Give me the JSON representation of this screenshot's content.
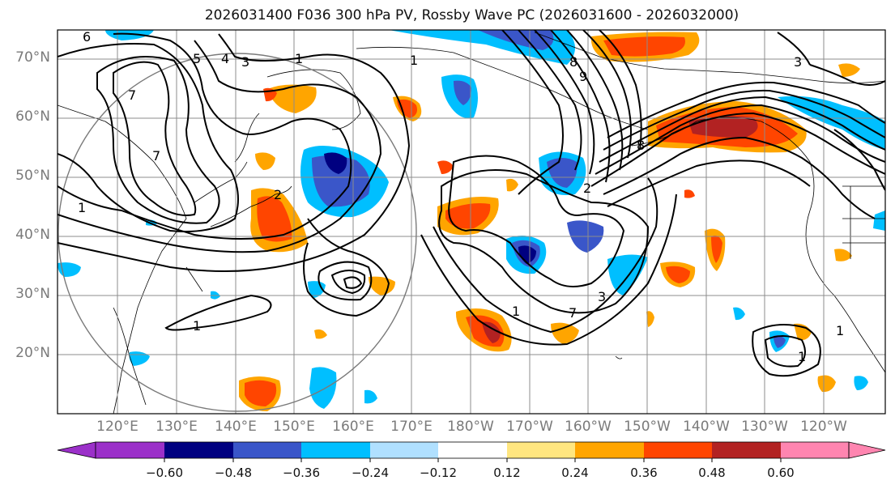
{
  "map": {
    "title": "2026031400 F036 300 hPa PV, Rossby Wave PC (2026031600 - 2026032000)",
    "lat_labels": [
      "70°N",
      "60°N",
      "50°N",
      "40°N",
      "30°N",
      "20°N"
    ],
    "lon_labels": [
      "120°E",
      "130°E",
      "140°E",
      "150°E",
      "160°E",
      "170°E",
      "180°W",
      "170°W",
      "160°W",
      "150°W",
      "140°W",
      "130°W",
      "120°W"
    ],
    "contour_labels": [
      "6",
      "5",
      "4",
      "3",
      "1",
      "7",
      "7",
      "1",
      "2",
      "1",
      "1",
      "8",
      "9",
      "8",
      "2",
      "1",
      "7",
      "3",
      "3",
      "1",
      "1"
    ]
  },
  "colorbar": {
    "tick_labels": [
      "−0.60",
      "−0.48",
      "−0.36",
      "−0.24",
      "−0.12",
      "0.12",
      "0.24",
      "0.36",
      "0.48",
      "0.60"
    ],
    "colors": [
      "#9b30c9",
      "#000080",
      "#3a56c9",
      "#00bfff",
      "#b0e0ff",
      "#ffffff",
      "#ffe680",
      "#ffa500",
      "#ff4500",
      "#b22222",
      "#ff85b0"
    ]
  }
}
